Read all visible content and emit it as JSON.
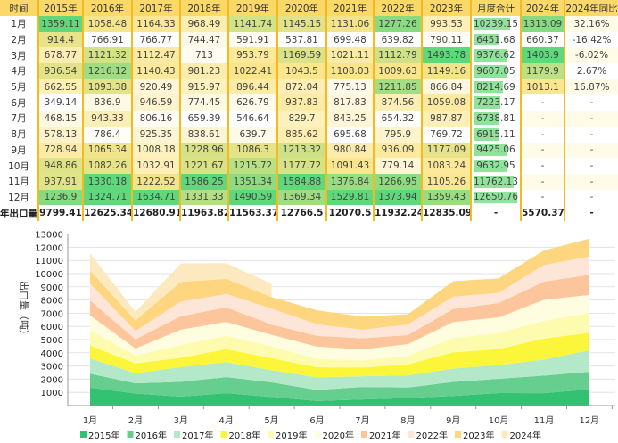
{
  "table": {
    "headers": [
      "时间",
      "2015年",
      "2016年",
      "2017年",
      "2018年",
      "2019年",
      "2020年",
      "2021年",
      "2022年",
      "2023年",
      "月度合计",
      "2024年",
      "2024年同比"
    ],
    "rows": [
      [
        "1月",
        "1359.11",
        "1058.48",
        "1164.33",
        "968.49",
        "1141.74",
        "1145.15",
        "1131.06",
        "1277.26",
        "993.53",
        "10239.15",
        "1313.09",
        "32.16%"
      ],
      [
        "2月",
        "914.4",
        "766.91",
        "766.77",
        "744.47",
        "591.91",
        "537.81",
        "699.48",
        "639.82",
        "790.11",
        "6451.68",
        "660.37",
        "-16.42%"
      ],
      [
        "3月",
        "678.77",
        "1121.32",
        "1112.47",
        "713",
        "953.79",
        "1169.59",
        "1021.11",
        "1112.79",
        "1493.78",
        "9376.62",
        "1403.9",
        "-6.02%"
      ],
      [
        "4月",
        "936.54",
        "1216.12",
        "1140.43",
        "981.23",
        "1022.41",
        "1043.5",
        "1108.03",
        "1009.63",
        "1149.16",
        "9607.05",
        "1179.9",
        "2.67%"
      ],
      [
        "5月",
        "662.55",
        "1093.38",
        "920.49",
        "915.97",
        "896.44",
        "872.04",
        "775.13",
        "1211.85",
        "866.84",
        "8214.69",
        "1013.1",
        "16.87%"
      ],
      [
        "6月",
        "349.14",
        "836.9",
        "946.59",
        "774.45",
        "626.79",
        "937.83",
        "817.83",
        "874.56",
        "1059.08",
        "7223.17",
        "-",
        "-"
      ],
      [
        "7月",
        "468.15",
        "943.33",
        "806.16",
        "659.39",
        "546.64",
        "829.7",
        "843.25",
        "654.32",
        "987.87",
        "6738.81",
        "-",
        "-"
      ],
      [
        "8月",
        "578.13",
        "786.4",
        "925.35",
        "838.61",
        "639.7",
        "885.62",
        "695.68",
        "795.9",
        "769.72",
        "6915.11",
        "-",
        "-"
      ],
      [
        "9月",
        "728.94",
        "1065.34",
        "1008.18",
        "1228.96",
        "1086.3",
        "1213.32",
        "980.84",
        "936.09",
        "1177.09",
        "9425.06",
        "-",
        "-"
      ],
      [
        "10月",
        "948.86",
        "1082.26",
        "1032.91",
        "1221.67",
        "1215.72",
        "1177.72",
        "1091.43",
        "779.14",
        "1083.24",
        "9632.95",
        "-",
        "-"
      ],
      [
        "11月",
        "937.91",
        "1330.18",
        "1222.52",
        "1586.25",
        "1351.34",
        "1584.88",
        "1376.84",
        "1266.95",
        "1105.26",
        "11762.13",
        "-",
        "-"
      ],
      [
        "12月",
        "1236.9",
        "1324.71",
        "1634.71",
        "1331.33",
        "1490.59",
        "1369.34",
        "1529.81",
        "1373.94",
        "1359.43",
        "12650.76",
        "-",
        "-"
      ]
    ],
    "total": [
      "年出口量",
      "9799.41",
      "12625.34",
      "12680.91",
      "11963.82",
      "11563.37",
      "12766.5",
      "12070.5",
      "11932.24",
      "12835.09",
      "-",
      "5570.37",
      "-"
    ]
  },
  "chart_data": {
    "type": "area",
    "stacked": true,
    "categories": [
      "1月",
      "2月",
      "3月",
      "4月",
      "5月",
      "6月",
      "7月",
      "8月",
      "9月",
      "10月",
      "11月",
      "12月"
    ],
    "ylabel": "出口量（吨）",
    "ylim": [
      0,
      13000
    ],
    "yticks": [
      1000,
      2000,
      3000,
      4000,
      5000,
      6000,
      7000,
      8000,
      9000,
      10000,
      11000,
      12000,
      13000
    ],
    "grid": true,
    "legend": "bottom",
    "series": [
      {
        "name": "2015年",
        "color": "#33c172",
        "values": [
          1359.11,
          914.4,
          678.77,
          936.54,
          662.55,
          349.14,
          468.15,
          578.13,
          728.94,
          948.86,
          937.91,
          1236.9
        ]
      },
      {
        "name": "2016年",
        "color": "#66cf90",
        "values": [
          1058.48,
          766.91,
          1121.32,
          1216.12,
          1093.38,
          836.9,
          943.33,
          786.4,
          1065.34,
          1082.26,
          1330.18,
          1324.71
        ]
      },
      {
        "name": "2017年",
        "color": "#b3e8c8",
        "values": [
          1164.33,
          766.77,
          1112.47,
          1140.43,
          920.49,
          946.59,
          806.16,
          925.35,
          1008.18,
          1032.91,
          1222.52,
          1634.71
        ]
      },
      {
        "name": "2018年",
        "color": "#fcf63a",
        "values": [
          968.49,
          744.47,
          713,
          981.23,
          915.97,
          774.45,
          659.39,
          838.61,
          1228.96,
          1221.67,
          1586.25,
          1331.33
        ]
      },
      {
        "name": "2019年",
        "color": "#fdfbae",
        "values": [
          1141.74,
          591.91,
          953.79,
          1022.41,
          896.44,
          626.79,
          546.64,
          639.7,
          1086.3,
          1215.72,
          1351.34,
          1490.59
        ]
      },
      {
        "name": "2020年",
        "color": "#fefde0",
        "values": [
          1145.15,
          537.81,
          1169.59,
          1043.5,
          872.04,
          937.83,
          829.7,
          885.62,
          1213.32,
          1177.72,
          1584.88,
          1369.34
        ]
      },
      {
        "name": "2021年",
        "color": "#fdc59c",
        "values": [
          1131.06,
          699.48,
          1021.11,
          1108.03,
          775.13,
          817.83,
          843.25,
          695.68,
          980.84,
          1091.43,
          1376.84,
          1529.81
        ]
      },
      {
        "name": "2022年",
        "color": "#fde6d8",
        "values": [
          1277.26,
          639.82,
          1112.79,
          1009.63,
          1211.85,
          874.56,
          654.32,
          795.9,
          936.09,
          779.14,
          1266.95,
          1373.94
        ]
      },
      {
        "name": "2023年",
        "color": "#fdd67f",
        "values": [
          993.53,
          790.11,
          1493.78,
          1149.16,
          866.84,
          1059.08,
          987.87,
          769.72,
          1177.09,
          1083.24,
          1105.26,
          1359.43
        ]
      },
      {
        "name": "2024年",
        "color": "#fde9bf",
        "values": [
          1313.09,
          660.37,
          1403.9,
          1179.9,
          1013.1,
          null,
          null,
          null,
          null,
          null,
          null,
          null
        ]
      }
    ]
  }
}
